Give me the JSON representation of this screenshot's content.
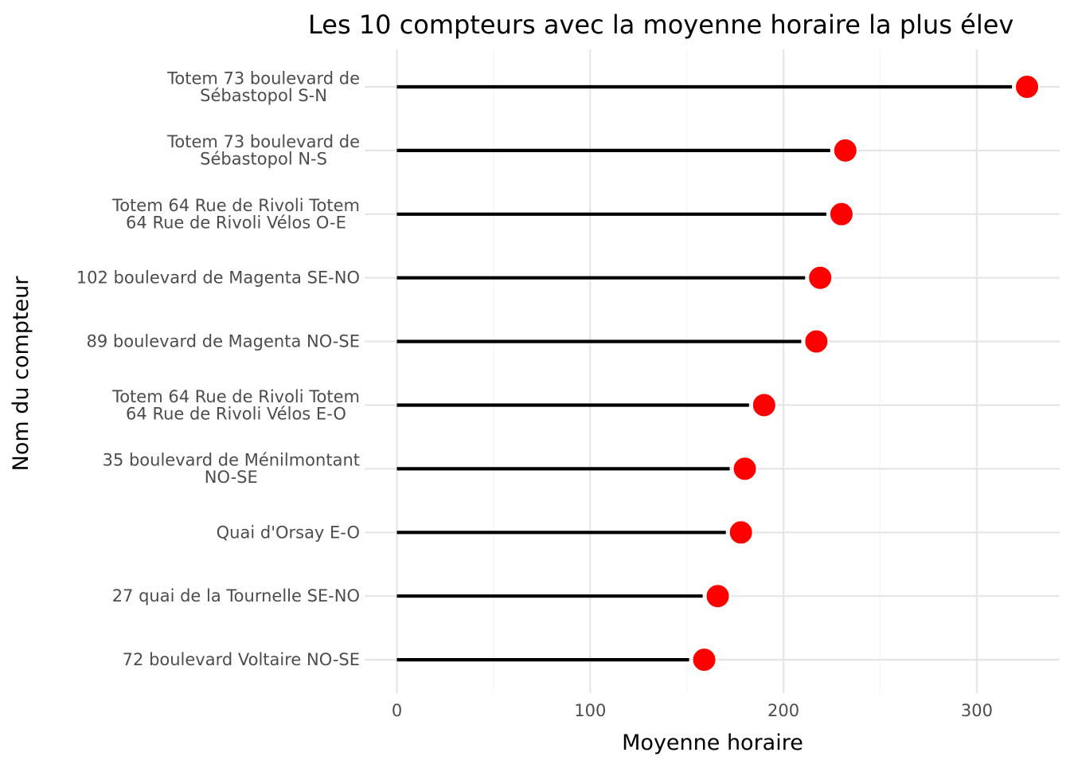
{
  "chart_data": {
    "type": "lollipop",
    "title": "Les 10 compteurs avec la moyenne horaire la plus élev",
    "xlabel": "Moyenne horaire",
    "ylabel": "Nom du compteur",
    "xlim": [
      0,
      340
    ],
    "x_ticks": [
      0,
      100,
      200,
      300
    ],
    "x_tick_labels": [
      "0",
      "100",
      "200",
      "300"
    ],
    "grid": true,
    "colors": {
      "point": "#ff0000",
      "stem": "#000000",
      "grid": "#e5e5e5"
    },
    "categories": [
      [
        "Totem 73 boulevard de",
        "Sébastopol S-N"
      ],
      [
        "Totem 73 boulevard de",
        "Sébastopol N-S"
      ],
      [
        "Totem 64 Rue de Rivoli Totem",
        "64 Rue de Rivoli Vélos O-E"
      ],
      [
        "102 boulevard de Magenta SE-NO"
      ],
      [
        "89 boulevard de Magenta NO-SE"
      ],
      [
        "Totem 64 Rue de Rivoli Totem",
        "64 Rue de Rivoli Vélos E-O"
      ],
      [
        "35 boulevard de Ménilmontant",
        "NO-SE"
      ],
      [
        "Quai d'Orsay E-O"
      ],
      [
        "27 quai de la Tournelle SE-NO"
      ],
      [
        "72 boulevard Voltaire NO-SE"
      ]
    ],
    "values": [
      326,
      232,
      230,
      219,
      217,
      190,
      180,
      178,
      166,
      159
    ]
  }
}
